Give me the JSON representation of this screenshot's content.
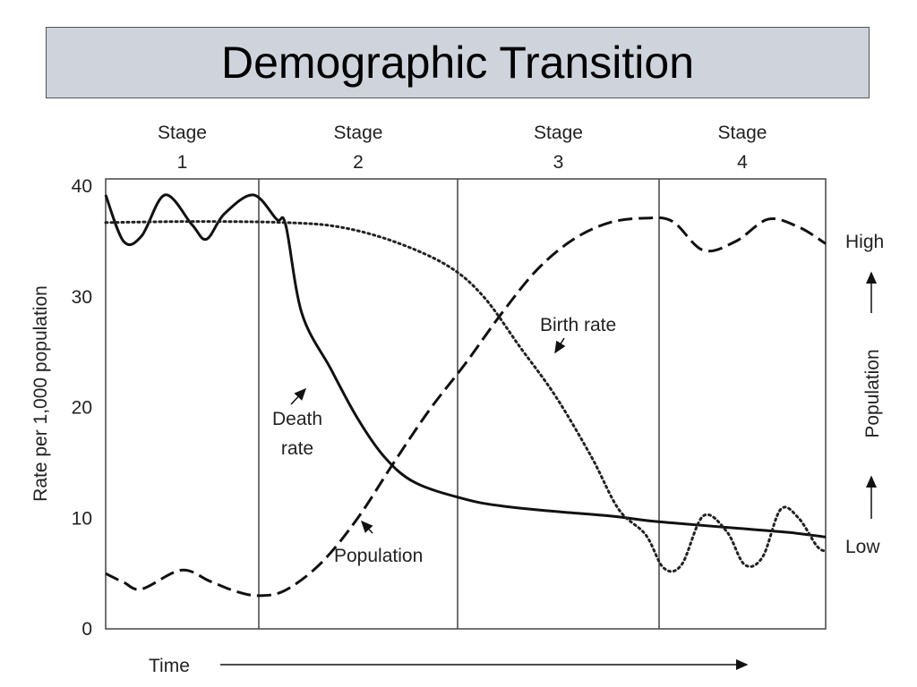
{
  "page_title": "Demographic Transition",
  "chart_data": {
    "type": "line",
    "title": "Demographic Transition",
    "ylabel": "Rate per 1,000 population",
    "xlabel": "Time",
    "ylim": [
      0,
      40
    ],
    "yticks": [
      0,
      10,
      20,
      30,
      40
    ],
    "x_range": [
      0,
      4
    ],
    "stages": [
      {
        "label_top": "Stage",
        "label_num": "1",
        "x_start": 0,
        "x_end": 1
      },
      {
        "label_top": "Stage",
        "label_num": "2",
        "x_start": 1,
        "x_end": 2
      },
      {
        "label_top": "Stage",
        "label_num": "3",
        "x_start": 2,
        "x_end": 3
      },
      {
        "label_top": "Stage",
        "label_num": "4",
        "x_start": 3,
        "x_end": 4
      }
    ],
    "right_axis": {
      "label": "Population",
      "high": "High",
      "low": "Low"
    },
    "series": [
      {
        "name": "Death rate",
        "style": "solid",
        "points": [
          [
            0,
            39.2
          ],
          [
            0.1,
            35.0
          ],
          [
            0.2,
            35.5
          ],
          [
            0.33,
            39.2
          ],
          [
            0.48,
            36.5
          ],
          [
            0.56,
            35.2
          ],
          [
            0.66,
            37.5
          ],
          [
            0.82,
            39.2
          ],
          [
            0.95,
            37.0
          ],
          [
            1.0,
            36.5
          ],
          [
            1.09,
            28.5
          ],
          [
            1.25,
            23.5
          ],
          [
            1.4,
            19.0
          ],
          [
            1.55,
            15.5
          ],
          [
            1.72,
            13.2
          ],
          [
            2.0,
            11.7
          ],
          [
            2.2,
            11.1
          ],
          [
            2.5,
            10.6
          ],
          [
            2.8,
            10.2
          ],
          [
            3.0,
            9.8
          ],
          [
            3.2,
            9.5
          ],
          [
            3.5,
            9.1
          ],
          [
            3.8,
            8.7
          ],
          [
            4.0,
            8.3
          ]
        ]
      },
      {
        "name": "Birth rate",
        "style": "dashed",
        "points": [
          [
            0,
            5.0
          ],
          [
            0.1,
            4.2
          ],
          [
            0.2,
            3.6
          ],
          [
            0.42,
            5.3
          ],
          [
            0.58,
            4.3
          ],
          [
            0.72,
            3.4
          ],
          [
            0.85,
            3.0
          ],
          [
            1.0,
            3.5
          ],
          [
            1.2,
            6.0
          ],
          [
            1.4,
            10.0
          ],
          [
            1.6,
            15.0
          ],
          [
            1.8,
            19.8
          ],
          [
            2.0,
            24.0
          ],
          [
            2.2,
            28.5
          ],
          [
            2.4,
            32.5
          ],
          [
            2.6,
            35.2
          ],
          [
            2.8,
            36.7
          ],
          [
            3.0,
            37.1
          ],
          [
            3.15,
            36.8
          ],
          [
            3.32,
            34.2
          ],
          [
            3.5,
            35.0
          ],
          [
            3.68,
            37.0
          ],
          [
            3.85,
            36.3
          ],
          [
            4.0,
            34.8
          ]
        ]
      },
      {
        "name": "Population",
        "style": "dotted",
        "points": [
          [
            0,
            36.7
          ],
          [
            0.5,
            36.8
          ],
          [
            1.0,
            36.7
          ],
          [
            1.3,
            36.3
          ],
          [
            1.6,
            35.0
          ],
          [
            1.9,
            32.8
          ],
          [
            2.1,
            30.0
          ],
          [
            2.3,
            25.5
          ],
          [
            2.5,
            21.0
          ],
          [
            2.7,
            15.5
          ],
          [
            2.85,
            10.8
          ],
          [
            3.0,
            8.5
          ],
          [
            3.1,
            5.5
          ],
          [
            3.2,
            5.8
          ],
          [
            3.32,
            10.2
          ],
          [
            3.45,
            8.8
          ],
          [
            3.55,
            5.8
          ],
          [
            3.65,
            6.5
          ],
          [
            3.75,
            10.8
          ],
          [
            3.85,
            10.0
          ],
          [
            3.95,
            7.5
          ],
          [
            4.0,
            7.0
          ]
        ]
      }
    ],
    "annotations": [
      {
        "text_lines": [
          "Death",
          "rate"
        ],
        "target": "Death rate"
      },
      {
        "text_lines": [
          "Birth rate"
        ],
        "target": "Birth rate"
      },
      {
        "text_lines": [
          "Population"
        ],
        "target": "Population"
      }
    ]
  }
}
